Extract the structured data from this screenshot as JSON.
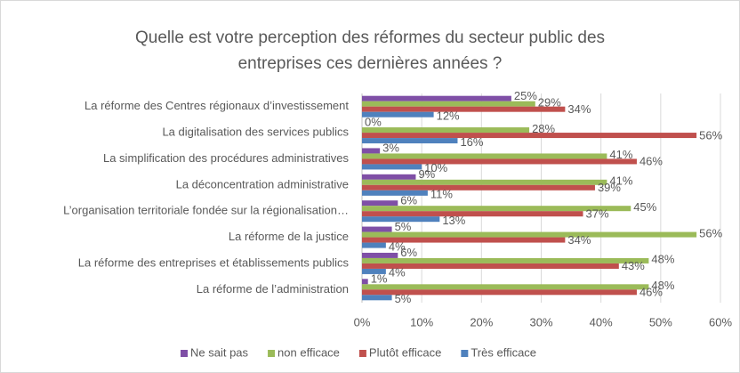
{
  "chart_data": {
    "type": "bar",
    "orientation": "horizontal",
    "title": "Quelle est votre perception des réformes du secteur public des entreprises ces dernières années ?",
    "categories": [
      "La réforme des Centres régionaux d’investissement",
      "La digitalisation des services publics",
      "La simplification des procédures administratives",
      "La déconcentration administrative",
      "L’organisation territoriale fondée sur la régionalisation…",
      "La réforme de la justice",
      "La réforme des entreprises et établissements publics",
      "La réforme de l’administration"
    ],
    "series": [
      {
        "name": "Ne sait pas",
        "color": "#7f4fa6",
        "values": [
          25,
          0,
          3,
          9,
          6,
          5,
          6,
          1
        ],
        "value_labels": [
          "25%",
          "0%",
          "3%",
          "9%",
          "6%",
          "5%",
          "6%",
          "1%"
        ]
      },
      {
        "name": "non efficace",
        "color": "#9bbb59",
        "values": [
          29,
          28,
          41,
          41,
          45,
          56,
          48,
          48
        ],
        "value_labels": [
          "29%",
          "28%",
          "41%",
          "41%",
          "45%",
          "56%",
          "48%",
          "48%"
        ]
      },
      {
        "name": "Plutôt efficace",
        "color": "#c0504d",
        "values": [
          34,
          56,
          46,
          39,
          37,
          34,
          43,
          46
        ],
        "value_labels": [
          "34%",
          "56%",
          "46%",
          "39%",
          "37%",
          "34%",
          "43%",
          "46%"
        ]
      },
      {
        "name": "Très efficace",
        "color": "#4f81bd",
        "values": [
          12,
          16,
          10,
          11,
          13,
          4,
          4,
          5
        ],
        "value_labels": [
          "12%",
          "16%",
          "10%",
          "11%",
          "13%",
          "4%",
          "4%",
          "5%"
        ]
      }
    ],
    "xlim": [
      0,
      60
    ],
    "xticks": [
      {
        "value": 0,
        "label": "0%"
      },
      {
        "value": 10,
        "label": "10%"
      },
      {
        "value": 20,
        "label": "20%"
      },
      {
        "value": 30,
        "label": "30%"
      },
      {
        "value": 40,
        "label": "40%"
      },
      {
        "value": 50,
        "label": "50%"
      },
      {
        "value": 60,
        "label": "60%"
      }
    ],
    "grid": true
  }
}
